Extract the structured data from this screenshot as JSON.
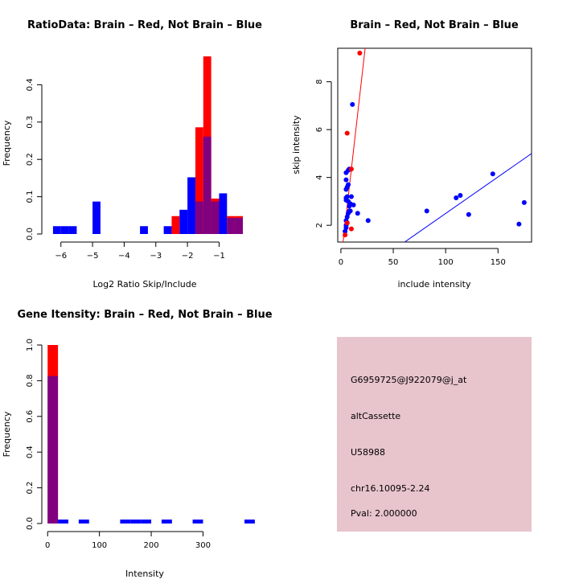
{
  "chart_data": [
    {
      "type": "histogram",
      "title": "RatioData: Brain – Red, Not Brain – Blue",
      "xlabel": "Log2 Ratio Skip/Include",
      "ylabel": "Frequency",
      "xlim": [
        -6.4,
        -0.3
      ],
      "ylim": [
        0,
        0.5
      ],
      "xticks": [
        -6,
        -5,
        -4,
        -3,
        -2,
        -1
      ],
      "xtick_labels": [
        "−6",
        "−5",
        "−4",
        "−3",
        "−2",
        "−1"
      ],
      "yticks": [
        0,
        0.1,
        0.2,
        0.3,
        0.4
      ],
      "ytick_labels": [
        "0.0",
        "0.1",
        "0.2",
        "0.3",
        "0.4"
      ],
      "bin_width": 0.25,
      "series": [
        {
          "name": "Not Brain",
          "color": "#0000ff",
          "bins": [
            [
              -6.25,
              0.021
            ],
            [
              -6.0,
              0.021
            ],
            [
              -5.75,
              0.021
            ],
            [
              -5.0,
              0.087
            ],
            [
              -3.5,
              0.021
            ],
            [
              -2.75,
              0.021
            ],
            [
              -2.25,
              0.065
            ],
            [
              -2.0,
              0.152
            ],
            [
              -1.75,
              0.087
            ],
            [
              -1.5,
              0.261
            ],
            [
              -1.25,
              0.087
            ],
            [
              -1.0,
              0.109
            ],
            [
              -0.75,
              0.043
            ],
            [
              -0.5,
              0.043
            ]
          ]
        },
        {
          "name": "Brain",
          "color": "#ff0000",
          "bins": [
            [
              -2.5,
              0.048
            ],
            [
              -1.75,
              0.286
            ],
            [
              -1.5,
              0.476
            ],
            [
              -1.25,
              0.095
            ],
            [
              -0.75,
              0.048
            ],
            [
              -0.5,
              0.048
            ]
          ]
        }
      ],
      "overlap_color": "#800080"
    },
    {
      "type": "scatter",
      "title": "Brain – Red, Not Brain – Blue",
      "xlabel": "include intensity",
      "ylabel": "skip intensity",
      "xlim": [
        -3,
        182
      ],
      "ylim": [
        1.3,
        9.4
      ],
      "xticks": [
        0,
        50,
        100,
        150
      ],
      "xtick_labels": [
        "0",
        "50",
        "100",
        "150"
      ],
      "yticks": [
        2,
        4,
        6,
        8
      ],
      "ytick_labels": [
        "2",
        "4",
        "6",
        "8"
      ],
      "series": [
        {
          "name": "Not Brain",
          "color": "#0000ff",
          "points": [
            [
              4,
              1.75
            ],
            [
              5,
              1.9
            ],
            [
              5,
              2.0
            ],
            [
              6,
              2.1
            ],
            [
              5,
              2.2
            ],
            [
              6,
              2.35
            ],
            [
              7,
              2.5
            ],
            [
              8,
              2.6
            ],
            [
              8,
              2.8
            ],
            [
              9,
              2.9
            ],
            [
              7,
              3.0
            ],
            [
              5,
              3.05
            ],
            [
              5,
              3.15
            ],
            [
              6,
              3.2
            ],
            [
              10,
              3.2
            ],
            [
              12,
              2.85
            ],
            [
              9,
              2.6
            ],
            [
              16,
              2.5
            ],
            [
              26,
              2.2
            ],
            [
              5,
              3.5
            ],
            [
              6,
              3.6
            ],
            [
              5,
              3.9
            ],
            [
              5,
              4.2
            ],
            [
              7,
              4.3
            ],
            [
              8,
              4.35
            ],
            [
              11,
              7.05
            ],
            [
              7,
              3.7
            ],
            [
              82,
              2.6
            ],
            [
              110,
              3.15
            ],
            [
              114,
              3.25
            ],
            [
              122,
              2.45
            ],
            [
              145,
              4.15
            ],
            [
              170,
              2.05
            ],
            [
              175,
              2.95
            ]
          ]
        },
        {
          "name": "Brain",
          "color": "#ff0000",
          "points": [
            [
              4,
              1.6
            ],
            [
              6,
              5.85
            ],
            [
              10,
              4.35
            ],
            [
              10,
              1.85
            ],
            [
              18,
              9.2
            ],
            [
              6,
              2.1
            ]
          ]
        }
      ],
      "lines": [
        {
          "color": "#ff0000",
          "from": [
            0,
            0.5
          ],
          "to": [
            26,
            10.5
          ]
        },
        {
          "color": "#0000ff",
          "from": [
            0,
            -0.56
          ],
          "to": [
            182,
            5.0
          ]
        }
      ]
    },
    {
      "type": "histogram",
      "title": "Gene Itensity: Brain – Red, Not Brain – Blue",
      "xlabel": "Intensity",
      "ylabel": "Frequency",
      "xlim": [
        -5,
        380
      ],
      "ylim": [
        0,
        1.0
      ],
      "xticks": [
        0,
        100,
        200,
        300
      ],
      "xtick_labels": [
        "0",
        "100",
        "200",
        "300"
      ],
      "yticks": [
        0,
        0.2,
        0.4,
        0.6,
        0.8,
        1.0
      ],
      "ytick_labels": [
        "0.0",
        "0.2",
        "0.4",
        "0.6",
        "0.8",
        "1.0"
      ],
      "bin_width": 20,
      "series": [
        {
          "name": "Not Brain",
          "color": "#0000ff",
          "bins": [
            [
              0,
              0.826
            ],
            [
              20,
              0.022
            ],
            [
              60,
              0.022
            ],
            [
              140,
              0.022
            ],
            [
              160,
              0.022
            ],
            [
              180,
              0.022
            ],
            [
              220,
              0.022
            ],
            [
              280,
              0.022
            ],
            [
              380,
              0.022
            ]
          ]
        },
        {
          "name": "Brain",
          "color": "#ff0000",
          "bins": [
            [
              0,
              1.0
            ]
          ]
        }
      ],
      "overlap_color": "#800080"
    }
  ],
  "info_box": {
    "id": "G6959725@J922079@j_at",
    "event": "altCassette",
    "accession": "U58988",
    "location": "chr16.10095-2.24",
    "pval": "Pval: 2.000000",
    "pval_color": "#800000",
    "bg_color": "#e8c4cc"
  }
}
